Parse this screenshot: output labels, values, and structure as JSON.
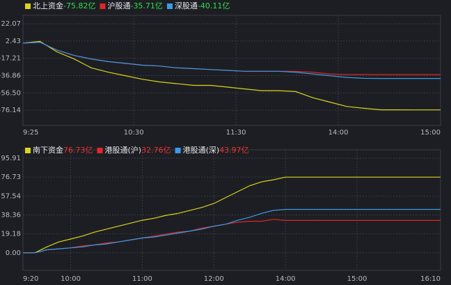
{
  "chart_data": [
    {
      "type": "line",
      "x": [
        0,
        10,
        20,
        30,
        40,
        50,
        60,
        70,
        80,
        90,
        100,
        110,
        120,
        130,
        140,
        150,
        160,
        170,
        180,
        190,
        200,
        210,
        220,
        230,
        240,
        245
      ],
      "xlim": [
        0,
        245
      ],
      "xticks": [
        {
          "value": 0,
          "label": "9:25"
        },
        {
          "value": 65,
          "label": "10:30"
        },
        {
          "value": 125,
          "label": "11:30"
        },
        {
          "value": 185,
          "label": "14:00"
        },
        {
          "value": 245,
          "label": "15:00"
        }
      ],
      "ylim": [
        -93.5,
        22.07
      ],
      "yticks": [
        22.07,
        2.43,
        -17.21,
        -36.86,
        {
          "value": -56.5,
          "label": "-56.50"
        },
        -76.14
      ],
      "grid": true,
      "value_label_color": "#2ee04a",
      "series": [
        {
          "name": "北上资金",
          "value_label": "-75.82亿",
          "color": "#d9d51c",
          "values": [
            0,
            2,
            -10,
            -18,
            -28,
            -33,
            -37,
            -41,
            -44,
            -46,
            -48,
            -48,
            -50,
            -52,
            -54,
            -54,
            -55,
            -62,
            -67,
            -72,
            -74,
            -75.8,
            -75.8,
            -75.82,
            -75.82,
            -75.82
          ]
        },
        {
          "name": "沪股通",
          "value_label": "-35.71亿",
          "color": "#e0262a",
          "values": [
            0,
            1,
            -8,
            -14,
            -18,
            -21,
            -23,
            -25,
            -26,
            -28,
            -29,
            -30,
            -31,
            -32,
            -32,
            -32,
            -32,
            -33,
            -35,
            -35.7,
            -35.71,
            -35.71,
            -35.71,
            -35.71,
            -35.71,
            -35.71
          ]
        },
        {
          "name": "深股通",
          "value_label": "-40.11亿",
          "color": "#3b9be6",
          "values": [
            0,
            1,
            -8,
            -14,
            -18,
            -21,
            -23,
            -25,
            -26,
            -28,
            -29,
            -30,
            -31,
            -32,
            -32,
            -32,
            -33,
            -35,
            -37,
            -39,
            -40,
            -40.11,
            -40.11,
            -40.11,
            -40.11,
            -40.11
          ]
        }
      ]
    },
    {
      "type": "line",
      "x": [
        0,
        10,
        20,
        30,
        40,
        50,
        60,
        70,
        80,
        90,
        100,
        110,
        120,
        130,
        140,
        150,
        160,
        170,
        180,
        190,
        200,
        210,
        220,
        230,
        240,
        250,
        260,
        270,
        280,
        290,
        300,
        310,
        320,
        330,
        340,
        350
      ],
      "xlim": [
        0,
        350
      ],
      "xticks": [
        {
          "value": 0,
          "label": "9:20"
        },
        {
          "value": 40,
          "label": "10:00"
        },
        {
          "value": 100,
          "label": "11:00"
        },
        {
          "value": 160,
          "label": "12:00"
        },
        {
          "value": 220,
          "label": "14:00"
        },
        {
          "value": 280,
          "label": "15:00"
        },
        {
          "value": 350,
          "label": "16:10"
        }
      ],
      "ylim": [
        -17.8,
        95.91
      ],
      "yticks": [
        95.91,
        76.73,
        57.54,
        38.36,
        19.18,
        {
          "value": 0,
          "label": "0.00"
        }
      ],
      "grid": true,
      "value_label_color": "#f0312f",
      "series": [
        {
          "name": "南下资金",
          "value_label": "76.73亿",
          "color": "#d9d51c",
          "values": [
            0,
            0,
            6,
            11,
            14,
            17,
            21,
            24,
            27,
            30,
            33,
            35,
            38,
            40,
            43,
            46,
            50,
            56,
            62,
            68,
            72,
            74,
            76.73,
            76.73,
            76.73,
            76.73,
            76.73,
            76.73,
            76.73,
            76.73,
            76.73,
            76.73,
            76.73,
            76.73,
            76.73,
            76.73
          ]
        },
        {
          "name": "港股通(沪)",
          "value_label": "32.76亿",
          "color": "#e0262a",
          "values": [
            0,
            0,
            3,
            4,
            5,
            7,
            8,
            10,
            11,
            13,
            15,
            17,
            19,
            21,
            22,
            25,
            27,
            29,
            31,
            32,
            32,
            34,
            32.76,
            32.76,
            32.76,
            32.76,
            32.76,
            32.76,
            32.76,
            32.76,
            32.76,
            32.76,
            32.76,
            32.76,
            32.76,
            32.76
          ]
        },
        {
          "name": "港股通(深)",
          "value_label": "43.97亿",
          "color": "#3b9be6",
          "values": [
            0,
            0,
            3,
            4,
            5,
            6,
            8,
            9,
            11,
            13,
            15,
            16,
            18,
            20,
            22,
            24,
            27,
            29,
            33,
            36,
            40,
            43,
            43.97,
            43.97,
            43.97,
            43.97,
            43.97,
            43.97,
            43.97,
            43.97,
            43.97,
            43.97,
            43.97,
            43.97,
            43.97,
            43.97
          ]
        }
      ]
    }
  ]
}
